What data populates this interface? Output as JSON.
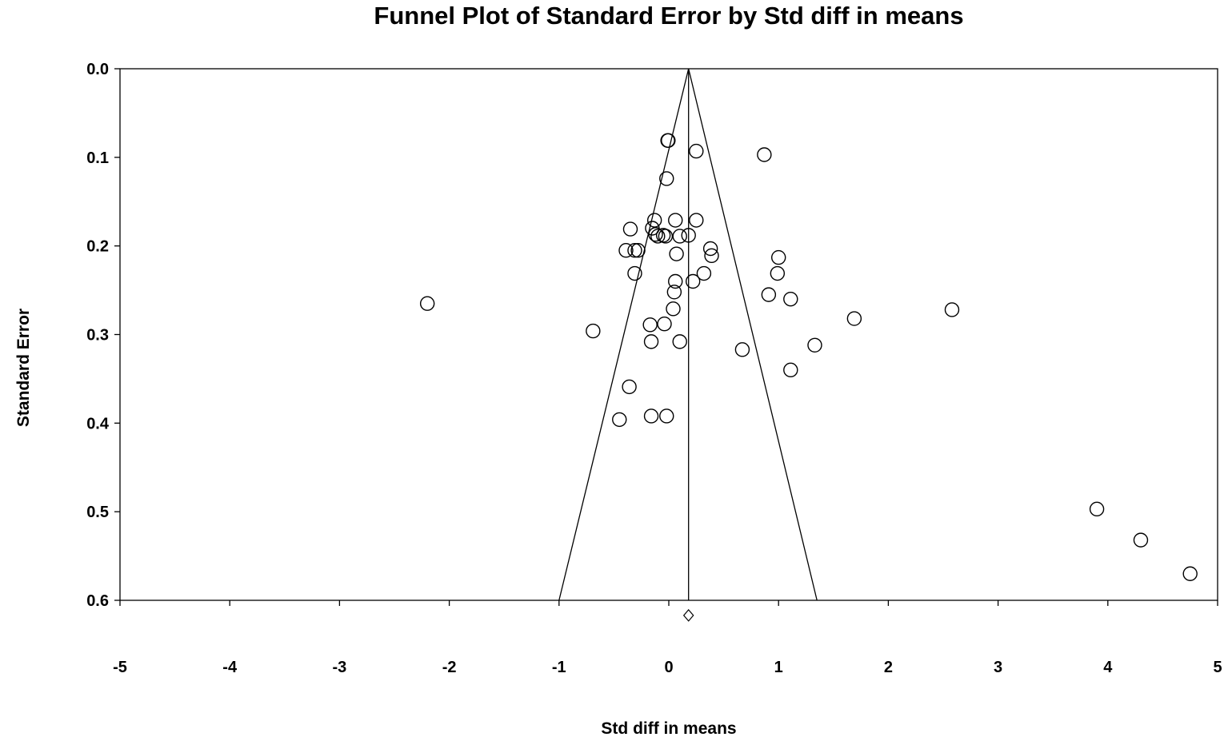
{
  "chart_data": {
    "type": "scatter",
    "title": "Funnel Plot of Standard Error by Std diff in means",
    "xlabel": "Std diff in means",
    "ylabel": "Standard Error",
    "xlim": [
      -5,
      5
    ],
    "ylim": [
      0.0,
      0.6
    ],
    "y_inverted": true,
    "x_ticks": [
      "-5",
      "-4",
      "-3",
      "-2",
      "-1",
      "0",
      "1",
      "2",
      "3",
      "4",
      "5"
    ],
    "y_ticks": [
      "0.0",
      "0.1",
      "0.2",
      "0.3",
      "0.4",
      "0.5",
      "0.6"
    ],
    "grid": false,
    "marker": "open-circle",
    "summary_effect": 0.18,
    "funnel": {
      "apex": [
        0.18,
        0.0
      ],
      "left_base": [
        -1.0,
        0.6
      ],
      "right_base": [
        1.35,
        0.6
      ]
    },
    "summary_diamond": [
      0.18,
      0.617
    ],
    "points": [
      {
        "x": -0.01,
        "y": 0.081
      },
      {
        "x": -0.005,
        "y": 0.081
      },
      {
        "x": 0.25,
        "y": 0.093
      },
      {
        "x": 0.87,
        "y": 0.097
      },
      {
        "x": -0.02,
        "y": 0.124
      },
      {
        "x": -0.13,
        "y": 0.171
      },
      {
        "x": 0.06,
        "y": 0.171
      },
      {
        "x": 0.25,
        "y": 0.171
      },
      {
        "x": -0.35,
        "y": 0.181
      },
      {
        "x": -0.15,
        "y": 0.18
      },
      {
        "x": -0.12,
        "y": 0.187
      },
      {
        "x": -0.1,
        "y": 0.189
      },
      {
        "x": -0.05,
        "y": 0.188
      },
      {
        "x": -0.03,
        "y": 0.189
      },
      {
        "x": 0.1,
        "y": 0.189
      },
      {
        "x": 0.18,
        "y": 0.188
      },
      {
        "x": -0.39,
        "y": 0.205
      },
      {
        "x": -0.31,
        "y": 0.205
      },
      {
        "x": -0.28,
        "y": 0.205
      },
      {
        "x": 0.38,
        "y": 0.203
      },
      {
        "x": 0.07,
        "y": 0.209
      },
      {
        "x": 0.39,
        "y": 0.211
      },
      {
        "x": 1.0,
        "y": 0.213
      },
      {
        "x": -0.31,
        "y": 0.231
      },
      {
        "x": 0.32,
        "y": 0.231
      },
      {
        "x": 0.99,
        "y": 0.231
      },
      {
        "x": 0.06,
        "y": 0.24
      },
      {
        "x": 0.22,
        "y": 0.24
      },
      {
        "x": 0.05,
        "y": 0.252
      },
      {
        "x": 0.91,
        "y": 0.255
      },
      {
        "x": 1.11,
        "y": 0.26
      },
      {
        "x": -2.2,
        "y": 0.265
      },
      {
        "x": 0.04,
        "y": 0.271
      },
      {
        "x": 2.58,
        "y": 0.272
      },
      {
        "x": 1.69,
        "y": 0.282
      },
      {
        "x": -0.17,
        "y": 0.289
      },
      {
        "x": -0.04,
        "y": 0.288
      },
      {
        "x": -0.69,
        "y": 0.296
      },
      {
        "x": -0.16,
        "y": 0.308
      },
      {
        "x": 0.1,
        "y": 0.308
      },
      {
        "x": 1.33,
        "y": 0.312
      },
      {
        "x": 0.67,
        "y": 0.317
      },
      {
        "x": 1.11,
        "y": 0.34
      },
      {
        "x": -0.36,
        "y": 0.359
      },
      {
        "x": -0.16,
        "y": 0.392
      },
      {
        "x": -0.02,
        "y": 0.392
      },
      {
        "x": -0.45,
        "y": 0.396
      },
      {
        "x": 3.9,
        "y": 0.497
      },
      {
        "x": 4.3,
        "y": 0.532
      },
      {
        "x": 4.75,
        "y": 0.57
      }
    ]
  }
}
